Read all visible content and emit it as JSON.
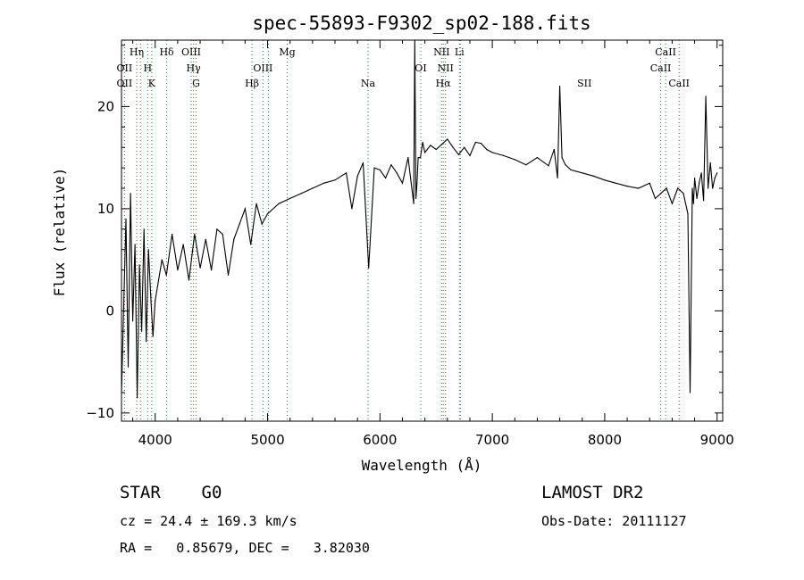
{
  "chart_data": {
    "type": "line",
    "title": "spec-55893-F9302_sp02-188.fits",
    "xlabel": "Wavelength (Å)",
    "ylabel": "Flux (relative)",
    "xlim": [
      3700,
      9050
    ],
    "ylim": [
      -10.8,
      26.5
    ],
    "xticks": [
      4000,
      5000,
      6000,
      7000,
      8000,
      9000
    ],
    "yticks": [
      -10,
      0,
      10,
      20
    ],
    "series": [
      {
        "x": [
          3700,
          3720,
          3740,
          3760,
          3780,
          3800,
          3820,
          3840,
          3860,
          3880,
          3900,
          3920,
          3940,
          3960,
          3980,
          4000,
          4030,
          4060,
          4100,
          4150,
          4200,
          4250,
          4300,
          4350,
          4400,
          4450,
          4500,
          4550,
          4600,
          4650,
          4700,
          4750,
          4800,
          4850,
          4900,
          4950,
          5000,
          5100,
          5200,
          5300,
          5400,
          5500,
          5600,
          5700,
          5750,
          5800,
          5850,
          5900,
          5950,
          6000,
          6050,
          6100,
          6150,
          6200,
          6250,
          6300,
          6310,
          6320,
          6330,
          6340,
          6360,
          6380,
          6400,
          6450,
          6500,
          6550,
          6600,
          6650,
          6700,
          6750,
          6800,
          6850,
          6900,
          6950,
          7000,
          7100,
          7200,
          7300,
          7400,
          7500,
          7550,
          7580,
          7600,
          7620,
          7650,
          7700,
          7800,
          7900,
          8000,
          8100,
          8200,
          8300,
          8400,
          8450,
          8500,
          8550,
          8600,
          8650,
          8700,
          8740,
          8760,
          8780,
          8790,
          8800,
          8820,
          8840,
          8860,
          8880,
          8900,
          8920,
          8940,
          8960,
          8980,
          9000
        ],
        "y": [
          -8.0,
          0.5,
          9.0,
          -5.5,
          11.5,
          -1.0,
          6.5,
          -8.5,
          4.5,
          -2.0,
          8.0,
          -3.0,
          6.0,
          1.5,
          -2.5,
          1.0,
          3.0,
          5.0,
          3.5,
          7.5,
          4.0,
          6.5,
          3.0,
          7.5,
          4.2,
          7.0,
          4.0,
          8.0,
          7.5,
          3.5,
          7.0,
          8.5,
          10.0,
          6.5,
          10.5,
          8.5,
          9.5,
          10.5,
          11.0,
          11.5,
          12.0,
          12.5,
          12.8,
          13.5,
          10.0,
          13.2,
          14.5,
          4.2,
          14.0,
          13.8,
          13.0,
          14.3,
          13.5,
          12.5,
          15.0,
          10.5,
          26.5,
          11.0,
          12.5,
          15.0,
          15.0,
          16.5,
          15.5,
          16.2,
          15.8,
          16.3,
          16.8,
          16.0,
          15.3,
          16.0,
          15.2,
          16.5,
          16.4,
          15.8,
          15.5,
          15.2,
          14.8,
          14.3,
          15.0,
          14.2,
          15.8,
          13.0,
          22.0,
          15.0,
          14.3,
          13.8,
          13.5,
          13.2,
          12.8,
          12.5,
          12.2,
          12.0,
          12.5,
          11.0,
          11.5,
          12.0,
          10.5,
          12.0,
          11.5,
          9.5,
          -8.0,
          12.0,
          10.5,
          13.0,
          11.0,
          12.5,
          13.5,
          10.8,
          21.0,
          12.0,
          14.5,
          12.0,
          13.0,
          13.5
        ]
      }
    ],
    "lines": [
      {
        "label": "OII",
        "x": 3727
      },
      {
        "label": "Hη",
        "x": 3835
      },
      {
        "label": "OII",
        "x": 3869
      },
      {
        "label": "H",
        "x": 3933
      },
      {
        "label": "K",
        "x": 3969
      },
      {
        "label": "Hδ",
        "x": 4102
      },
      {
        "label": "OIII",
        "x": 4320
      },
      {
        "label": "Hγ",
        "x": 4341
      },
      {
        "label": "G",
        "x": 4364
      },
      {
        "label": "Hβ",
        "x": 4861
      },
      {
        "label": "OIII",
        "x": 4959
      },
      {
        "label": "OIII",
        "x": 5007
      },
      {
        "label": "Mg",
        "x": 5175
      },
      {
        "label": "Na",
        "x": 5894
      },
      {
        "label": "OI",
        "x": 6363
      },
      {
        "label": "NII",
        "x": 6548
      },
      {
        "label": "Hα",
        "x": 6563
      },
      {
        "label": "NII",
        "x": 6583
      },
      {
        "label": "Li",
        "x": 6707
      },
      {
        "label": "SII",
        "x": 6716
      },
      {
        "label": "CaII",
        "x": 8498
      },
      {
        "label": "CaII",
        "x": 8542
      },
      {
        "label": "CaII",
        "x": 8662
      }
    ],
    "line_labels_text": [
      {
        "text": "Hη",
        "row": 1,
        "x": 3835
      },
      {
        "text": "Hδ",
        "row": 1,
        "x": 4102
      },
      {
        "text": "OIII",
        "row": 1,
        "x": 4320
      },
      {
        "text": "Mg",
        "row": 1,
        "x": 5175
      },
      {
        "text": "NII",
        "row": 1,
        "x": 6548
      },
      {
        "text": "Li",
        "row": 1,
        "x": 6707
      },
      {
        "text": "CaII",
        "row": 1,
        "x": 8542
      },
      {
        "text": "OII",
        "row": 2,
        "x": 3727
      },
      {
        "text": "H",
        "row": 2,
        "x": 3933
      },
      {
        "text": "Hγ",
        "row": 2,
        "x": 4341
      },
      {
        "text": "OIII",
        "row": 2,
        "x": 4959
      },
      {
        "text": "OI",
        "row": 2,
        "x": 6363
      },
      {
        "text": "NII",
        "row": 2,
        "x": 6583
      },
      {
        "text": "CaII",
        "row": 2,
        "x": 8498
      },
      {
        "text": "OII",
        "row": 3,
        "x": 3727
      },
      {
        "text": "K",
        "row": 3,
        "x": 3969
      },
      {
        "text": "G",
        "row": 3,
        "x": 4364
      },
      {
        "text": "Hβ",
        "row": 3,
        "x": 4861
      },
      {
        "text": "Na",
        "row": 3,
        "x": 5894
      },
      {
        "text": "Hα",
        "row": 3,
        "x": 6563
      },
      {
        "text": "SII",
        "row": 3,
        "x": 7820
      },
      {
        "text": "CaII",
        "row": 3,
        "x": 8662
      }
    ],
    "colors": {
      "trace": "#000000",
      "lines": "#d62728"
    }
  },
  "info": {
    "object": "STAR    G0",
    "survey": "LAMOST DR2",
    "cz": "cz = 24.4 ± 169.3 km/s",
    "obs_date": "Obs-Date: 20111127",
    "coords": "RA =   0.85679, DEC =   3.82030"
  }
}
